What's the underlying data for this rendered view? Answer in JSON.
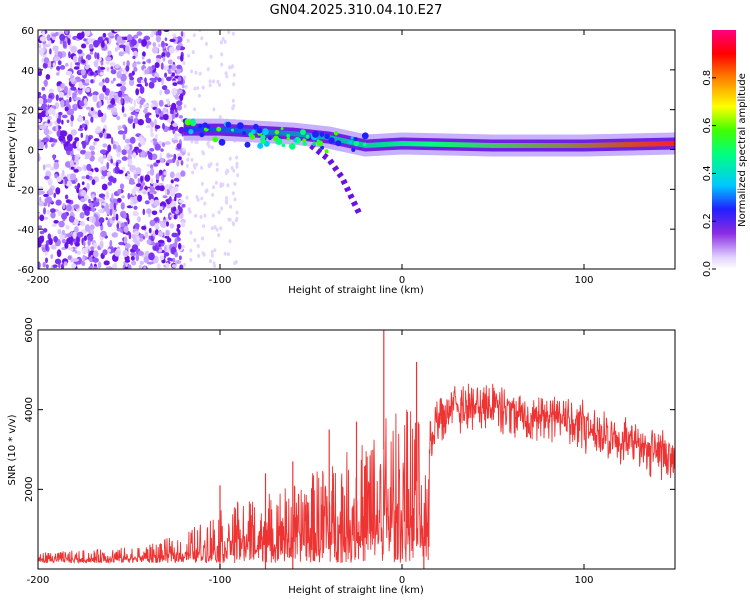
{
  "title": "GN04.2025.310.04.10.E27",
  "chart_data": [
    {
      "type": "heatmap",
      "name": "spectrogram",
      "xlabel": "Height of straight line (km)",
      "ylabel": "Frequency (Hz)",
      "xlim": [
        -200,
        150
      ],
      "ylim": [
        -60,
        60
      ],
      "xticks": [
        -200,
        -100,
        0,
        100
      ],
      "xtick_labels": [
        "-200",
        "-100",
        "0",
        "100"
      ],
      "yticks": [
        -60,
        -40,
        -20,
        0,
        20,
        40,
        60
      ],
      "ytick_labels": [
        "-60",
        "-40",
        "-20",
        "0",
        "20",
        "40",
        "60"
      ],
      "colorbar": {
        "label": "Normalized spectral amplitude",
        "range": [
          0,
          1
        ],
        "ticks": [
          0.0,
          0.2,
          0.4,
          0.6,
          0.8
        ],
        "tick_labels": [
          "0.0",
          "0.2",
          "0.4",
          "0.6",
          "0.8"
        ]
      },
      "features": {
        "noise_region_x": [
          -200,
          -120
        ],
        "signal_track": [
          {
            "x": -120,
            "f": 10
          },
          {
            "x": -100,
            "f": 10
          },
          {
            "x": -80,
            "f": 9
          },
          {
            "x": -60,
            "f": 8
          },
          {
            "x": -40,
            "f": 6
          },
          {
            "x": -20,
            "f": 2
          },
          {
            "x": 0,
            "f": 3
          },
          {
            "x": 50,
            "f": 2
          },
          {
            "x": 100,
            "f": 2
          },
          {
            "x": 150,
            "f": 3
          }
        ],
        "drift_branch": [
          {
            "x": -50,
            "f": 2
          },
          {
            "x": -40,
            "f": -5
          },
          {
            "x": -33,
            "f": -14
          },
          {
            "x": -23,
            "f": -33
          }
        ]
      }
    },
    {
      "type": "line",
      "name": "snr",
      "xlabel": "Height of straight line (km)",
      "ylabel": "SNR (10 * v/v)",
      "xlim": [
        -200,
        150
      ],
      "ylim": [
        0,
        6000
      ],
      "xticks": [
        -200,
        -100,
        0,
        100
      ],
      "xtick_labels": [
        "-200",
        "-100",
        "0",
        "100"
      ],
      "yticks": [
        2000,
        4000,
        6000
      ],
      "ytick_labels": [
        "2000",
        "4000",
        "6000"
      ],
      "color": "#ee3333",
      "envelope": [
        {
          "x": -200,
          "y": 250
        },
        {
          "x": -170,
          "y": 300
        },
        {
          "x": -140,
          "y": 400
        },
        {
          "x": -120,
          "y": 700
        },
        {
          "x": -100,
          "y": 1200
        },
        {
          "x": -80,
          "y": 1600
        },
        {
          "x": -60,
          "y": 1800
        },
        {
          "x": -40,
          "y": 2300
        },
        {
          "x": -20,
          "y": 2800
        },
        {
          "x": -10,
          "y": 3400
        },
        {
          "x": 0,
          "y": 3500
        },
        {
          "x": 5,
          "y": 3600
        },
        {
          "x": 10,
          "y": 3200
        },
        {
          "x": 12,
          "y": 1500
        },
        {
          "x": 15,
          "y": 3300
        },
        {
          "x": 20,
          "y": 3900
        },
        {
          "x": 30,
          "y": 4200
        },
        {
          "x": 40,
          "y": 4300
        },
        {
          "x": 60,
          "y": 4100
        },
        {
          "x": 80,
          "y": 4000
        },
        {
          "x": 100,
          "y": 3800
        },
        {
          "x": 120,
          "y": 3400
        },
        {
          "x": 150,
          "y": 3000
        }
      ],
      "spikes": [
        {
          "x": -100,
          "y": 2100
        },
        {
          "x": -75,
          "y": 2400
        },
        {
          "x": -60,
          "y": 2700
        },
        {
          "x": -40,
          "y": 3500
        },
        {
          "x": -25,
          "y": 3700
        },
        {
          "x": -10,
          "y": 6000
        },
        {
          "x": 8,
          "y": 5200
        },
        {
          "x": 12,
          "y": 800
        }
      ]
    }
  ]
}
